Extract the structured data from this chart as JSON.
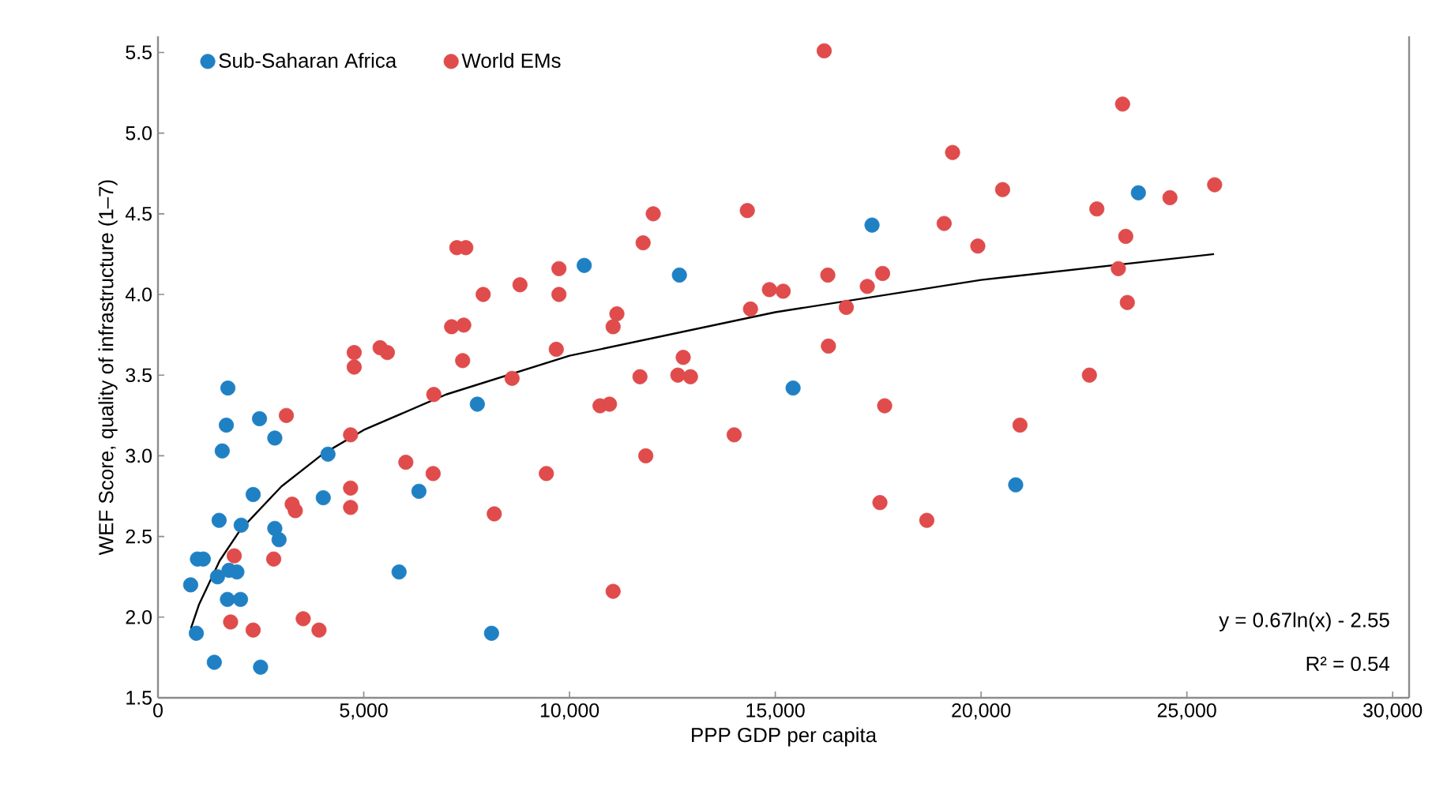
{
  "chart_data": {
    "type": "scatter",
    "xlabel": "PPP GDP per  capita",
    "ylabel": "WEF Score, quality of infrastructure (1–7)",
    "xlim": [
      0,
      30400
    ],
    "ylim": [
      1.5,
      5.6
    ],
    "xticks": [
      0,
      {
        "value": 5000,
        "label": "5,000"
      },
      {
        "value": 10000,
        "label": "10,000"
      },
      {
        "value": 15000,
        "label": "15,000"
      },
      {
        "value": 20000,
        "label": "20,000"
      },
      {
        "value": 25000,
        "label": "25,000"
      },
      {
        "value": 30000,
        "label": "30,000"
      }
    ],
    "yticks": [
      1.5,
      {
        "value": 2,
        "label": "2.0"
      },
      2.5,
      {
        "value": 3,
        "label": "3.0"
      },
      3.5,
      {
        "value": 4,
        "label": "4.0"
      },
      4.5,
      {
        "value": 5,
        "label": "5.0"
      },
      5.5
    ],
    "marker": "circle",
    "legend": "top left",
    "series": [
      {
        "name": "Sub-Saharan Africa",
        "color": "#1f80c4",
        "x": [
          794,
          932,
          959,
          1101,
          1369,
          1446,
          1485,
          1561,
          1661,
          1699,
          1726,
          1688,
          1918,
          2006,
          2022,
          2313,
          2467,
          2493,
          2839,
          2839,
          2942,
          4016,
          4131,
          5858,
          6341,
          7760,
          8105,
          10357,
          12670,
          15432,
          17350,
          20841,
          23822
        ],
        "values": [
          2.2,
          1.9,
          2.36,
          2.36,
          1.72,
          2.25,
          2.6,
          3.03,
          3.19,
          3.42,
          2.29,
          2.11,
          2.28,
          2.11,
          2.57,
          2.76,
          3.23,
          1.69,
          3.11,
          2.55,
          2.48,
          2.74,
          3.01,
          2.28,
          2.78,
          3.32,
          1.9,
          4.18,
          4.12,
          3.42,
          4.43,
          2.82,
          4.63
        ]
      },
      {
        "name": "World EMs",
        "color": "#e04b4b",
        "x": [
          1765,
          1853,
          2313,
          2812,
          3119,
          3261,
          3337,
          3529,
          3913,
          4680,
          4680,
          4680,
          4768,
          4768,
          5397,
          5574,
          6023,
          6686,
          6702,
          7135,
          7262,
          7480,
          7430,
          7403,
          7902,
          8171,
          8604,
          8796,
          9437,
          9678,
          9743,
          9743,
          10741,
          10971,
          11059,
          11059,
          11151,
          11711,
          11788,
          11853,
          12034,
          12632,
          12762,
          12939,
          14001,
          14320,
          14397,
          14857,
          15191,
          16188,
          16276,
          16291,
          16725,
          17235,
          17607,
          17542,
          17657,
          18681,
          19103,
          19307,
          19921,
          20523,
          20945,
          22632,
          22813,
          23335,
          23438,
          23515,
          23553,
          24589,
          25675
        ],
        "values": [
          1.97,
          2.38,
          1.92,
          2.36,
          3.25,
          2.7,
          2.66,
          1.99,
          1.92,
          3.13,
          2.8,
          2.68,
          3.64,
          3.55,
          3.67,
          3.64,
          2.96,
          2.89,
          3.38,
          3.8,
          4.29,
          4.29,
          3.81,
          3.59,
          4.0,
          2.64,
          3.48,
          4.06,
          2.89,
          3.66,
          4.16,
          4.0,
          3.31,
          3.32,
          2.16,
          3.8,
          3.88,
          3.49,
          4.32,
          3.0,
          4.5,
          3.5,
          3.61,
          3.49,
          3.13,
          4.52,
          3.91,
          4.03,
          4.02,
          5.51,
          4.12,
          3.68,
          3.92,
          4.05,
          4.13,
          2.71,
          3.31,
          2.6,
          4.44,
          4.88,
          4.3,
          4.65,
          3.19,
          3.5,
          4.53,
          4.16,
          5.18,
          4.36,
          3.95,
          4.6,
          4.68
        ]
      },
      {
        "type": "line",
        "color": "#000000",
        "marker": "none",
        "x": [
          800,
          1000,
          1500,
          2000,
          3000,
          4000,
          5000,
          7000,
          10000,
          15000,
          20000,
          25660
        ],
        "values": [
          1.93,
          2.08,
          2.35,
          2.54,
          2.81,
          3.01,
          3.16,
          3.38,
          3.62,
          3.89,
          4.09,
          4.25
        ]
      }
    ],
    "annotations": [
      "y = 0.67ln(x) - 2.55",
      "R² = 0.54"
    ]
  }
}
